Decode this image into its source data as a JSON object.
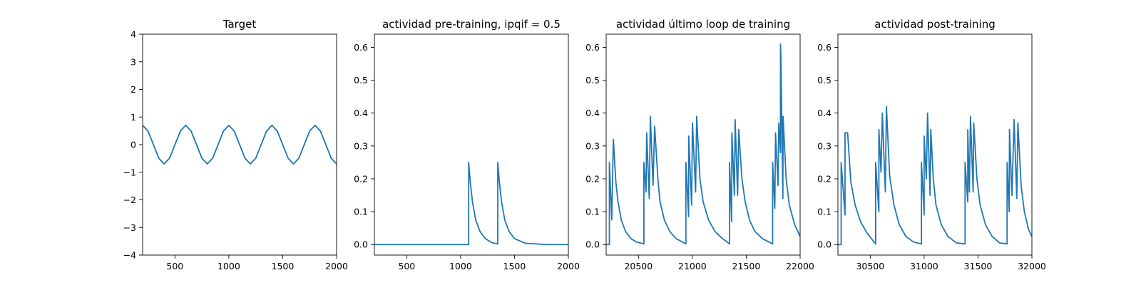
{
  "chart_data": [
    {
      "type": "line",
      "title": "Target",
      "xlim": [
        200,
        2000
      ],
      "ylim": [
        -4,
        4
      ],
      "xticks": [
        500,
        1000,
        1500,
        2000
      ],
      "yticks": [
        -4,
        -3,
        -2,
        -1,
        0,
        1,
        2,
        3,
        4
      ],
      "x": [
        200,
        250,
        300,
        350,
        400,
        450,
        500,
        550,
        600,
        650,
        700,
        750,
        800,
        850,
        900,
        950,
        1000,
        1050,
        1100,
        1150,
        1200,
        1250,
        1300,
        1350,
        1400,
        1450,
        1500,
        1550,
        1600,
        1650,
        1700,
        1750,
        1800,
        1850,
        1900,
        1950,
        2000
      ],
      "series": [
        {
          "values": [
            0.7,
            0.49,
            0.0,
            -0.49,
            -0.7,
            -0.49,
            0.0,
            0.49,
            0.7,
            0.49,
            0.0,
            -0.49,
            -0.7,
            -0.49,
            0.0,
            0.49,
            0.7,
            0.49,
            0.0,
            -0.49,
            -0.7,
            -0.49,
            0.0,
            0.49,
            0.7,
            0.49,
            0.0,
            -0.49,
            -0.7,
            -0.49,
            0.0,
            0.49,
            0.7,
            0.49,
            0.0,
            -0.49,
            -0.7
          ],
          "color": "#1f77b4"
        }
      ]
    },
    {
      "type": "line",
      "title": "actividad pre-training, ipqif = 0.5",
      "xlim": [
        200,
        2000
      ],
      "ylim": [
        -0.032,
        0.64
      ],
      "xticks": [
        500,
        1000,
        1500,
        2000
      ],
      "yticks": [
        0.0,
        0.1,
        0.2,
        0.3,
        0.4,
        0.5,
        0.6
      ],
      "ytick_labels": [
        "0.0",
        "0.1",
        "0.2",
        "0.3",
        "0.4",
        "0.5",
        "0.6"
      ],
      "x": [
        200,
        1075,
        1075,
        1090,
        1110,
        1140,
        1180,
        1230,
        1290,
        1345,
        1345,
        1360,
        1380,
        1410,
        1450,
        1500,
        1600,
        1800,
        2000
      ],
      "series": [
        {
          "values": [
            0.0,
            0.0,
            0.25,
            0.19,
            0.13,
            0.075,
            0.04,
            0.018,
            0.006,
            0.002,
            0.25,
            0.19,
            0.13,
            0.075,
            0.04,
            0.018,
            0.004,
            0.0,
            0.0
          ],
          "color": "#1f77b4"
        }
      ]
    },
    {
      "type": "line",
      "title": "actividad último loop de training",
      "xlim": [
        20200,
        22000
      ],
      "ylim": [
        -0.032,
        0.64
      ],
      "xticks": [
        20500,
        21000,
        21500,
        22000
      ],
      "yticks": [
        0.0,
        0.1,
        0.2,
        0.3,
        0.4,
        0.5,
        0.6
      ],
      "ytick_labels": [
        "0.0",
        "0.1",
        "0.2",
        "0.3",
        "0.4",
        "0.5",
        "0.6"
      ],
      "x": [
        20200,
        20230,
        20230,
        20252,
        20267,
        20267,
        20290,
        20310,
        20340,
        20380,
        20430,
        20480,
        20550,
        20550,
        20570,
        20576,
        20576,
        20600,
        20610,
        20610,
        20635,
        20650,
        20650,
        20680,
        20700,
        20740,
        20790,
        20850,
        20940,
        20940,
        20965,
        20966,
        20966,
        20993,
        21001,
        21001,
        21030,
        21040,
        21040,
        21070,
        21100,
        21150,
        21210,
        21280,
        21345,
        21345,
        21364,
        21367,
        21367,
        21390,
        21397,
        21397,
        21420,
        21430,
        21430,
        21460,
        21490,
        21530,
        21580,
        21650,
        21745,
        21745,
        21765,
        21772,
        21772,
        21795,
        21802,
        21802,
        21818,
        21818,
        21822,
        21822,
        21840,
        21842,
        21842,
        21870,
        21900,
        21950,
        22000
      ],
      "series": [
        {
          "values": [
            0.0,
            0.0,
            0.25,
            0.075,
            0.32,
            0.32,
            0.19,
            0.13,
            0.075,
            0.04,
            0.018,
            0.008,
            0.002,
            0.25,
            0.16,
            0.34,
            0.34,
            0.14,
            0.39,
            0.39,
            0.18,
            0.36,
            0.36,
            0.2,
            0.13,
            0.075,
            0.04,
            0.018,
            0.002,
            0.25,
            0.085,
            0.33,
            0.33,
            0.12,
            0.37,
            0.37,
            0.16,
            0.39,
            0.39,
            0.2,
            0.13,
            0.075,
            0.04,
            0.018,
            0.002,
            0.25,
            0.07,
            0.34,
            0.34,
            0.15,
            0.38,
            0.38,
            0.15,
            0.35,
            0.35,
            0.2,
            0.13,
            0.075,
            0.04,
            0.018,
            0.002,
            0.25,
            0.11,
            0.34,
            0.34,
            0.18,
            0.37,
            0.37,
            0.28,
            0.61,
            0.56,
            0.56,
            0.14,
            0.39,
            0.39,
            0.2,
            0.12,
            0.06,
            0.025
          ],
          "color": "#1f77b4"
        }
      ]
    },
    {
      "type": "line",
      "title": "actividad post-training",
      "xlim": [
        30200,
        32000
      ],
      "ylim": [
        -0.032,
        0.64
      ],
      "xticks": [
        30500,
        31000,
        31500,
        32000
      ],
      "yticks": [
        0.0,
        0.1,
        0.2,
        0.3,
        0.4,
        0.5,
        0.6
      ],
      "ytick_labels": [
        "0.0",
        "0.1",
        "0.2",
        "0.3",
        "0.4",
        "0.5",
        "0.6"
      ],
      "x": [
        30200,
        30230,
        30230,
        30266,
        30266,
        30290,
        30320,
        30360,
        30410,
        30470,
        30550,
        30550,
        30580,
        30580,
        30600,
        30612,
        30612,
        30640,
        30650,
        30650,
        30680,
        30720,
        30770,
        30830,
        30900,
        30975,
        30975,
        31000,
        31000,
        31020,
        31032,
        31032,
        31055,
        31062,
        31062,
        31085,
        31110,
        31160,
        31220,
        31300,
        31380,
        31380,
        31405,
        31405,
        31420,
        31430,
        31430,
        31455,
        31460,
        31460,
        31490,
        31520,
        31570,
        31630,
        31700,
        31770,
        31770,
        31790,
        31792,
        31792,
        31815,
        31835,
        31835,
        31860,
        31870,
        31870,
        31900,
        31930,
        31970,
        32000
      ],
      "series": [
        {
          "values": [
            0.0,
            0.0,
            0.25,
            0.09,
            0.34,
            0.34,
            0.19,
            0.12,
            0.07,
            0.035,
            0.002,
            0.25,
            0.1,
            0.35,
            0.22,
            0.4,
            0.4,
            0.16,
            0.42,
            0.42,
            0.21,
            0.12,
            0.06,
            0.025,
            0.008,
            0.002,
            0.25,
            0.09,
            0.33,
            0.2,
            0.4,
            0.4,
            0.15,
            0.35,
            0.35,
            0.2,
            0.12,
            0.06,
            0.025,
            0.005,
            0.002,
            0.25,
            0.13,
            0.35,
            0.16,
            0.39,
            0.39,
            0.16,
            0.37,
            0.37,
            0.2,
            0.12,
            0.06,
            0.025,
            0.005,
            0.002,
            0.25,
            0.1,
            0.35,
            0.35,
            0.15,
            0.38,
            0.38,
            0.14,
            0.37,
            0.37,
            0.18,
            0.1,
            0.045,
            0.025
          ],
          "color": "#1f77b4"
        }
      ]
    }
  ]
}
